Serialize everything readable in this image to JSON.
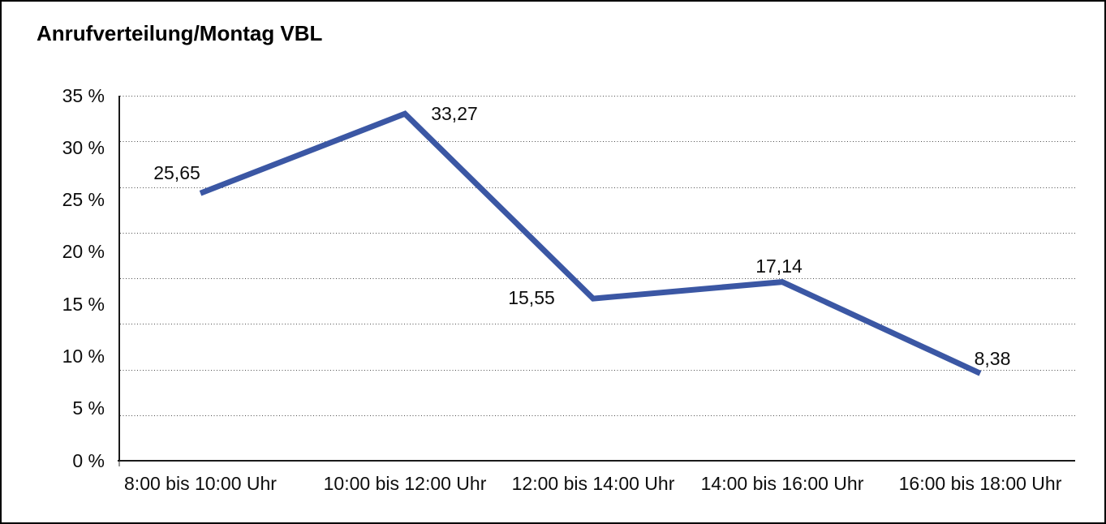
{
  "title": "Anrufverteilung/Montag VBL",
  "colors": {
    "line": "#3B57A4",
    "axis": "#1a1a1a",
    "grid_dots": "#4c4c4c",
    "text": "#0d0d0d"
  },
  "chart_data": {
    "type": "line",
    "title": "Anrufverteilung/Montag VBL",
    "categories": [
      "8:00 bis 10:00 Uhr",
      "10:00 bis 12:00 Uhr",
      "12:00 bis 14:00 Uhr",
      "14:00 bis 16:00 Uhr",
      "16:00 bis 18:00 Uhr"
    ],
    "series": [
      {
        "name": "Anrufverteilung Montag VBL",
        "values": [
          25.65,
          33.27,
          15.55,
          17.14,
          8.38
        ],
        "value_labels": [
          "25,65",
          "33,27",
          "15,55",
          "17,14",
          "8,38"
        ],
        "color": "#3B57A4"
      }
    ],
    "xlabel": "",
    "ylabel": "",
    "ylim": [
      0,
      35
    ],
    "y_ticks": [
      {
        "value": 35,
        "label": "35 %"
      },
      {
        "value": 30,
        "label": "30 %"
      },
      {
        "value": 25,
        "label": "25 %"
      },
      {
        "value": 20,
        "label": "20 %"
      },
      {
        "value": 15,
        "label": "15 %"
      },
      {
        "value": 10,
        "label": "10 %"
      },
      {
        "value": 5,
        "label": "5 %"
      },
      {
        "value": 0,
        "label": "0 %"
      }
    ],
    "grid": "horizontal dotted lines dividing plot into 8 equal bands",
    "legend": "none",
    "markers": "none"
  }
}
